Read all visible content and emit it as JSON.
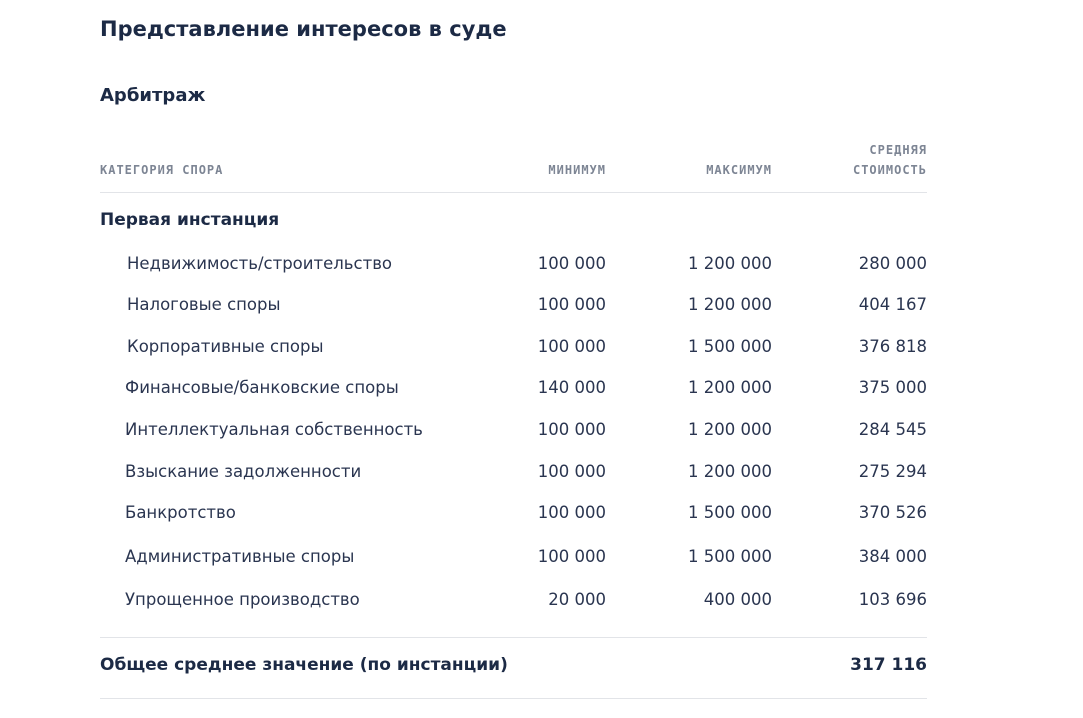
{
  "header": {
    "title": "Представление интересов в суде",
    "subtitle": "Арбитраж"
  },
  "table": {
    "columns": [
      "КАТЕГОРИЯ СПОРА",
      "МИНИМУМ",
      "МАКСИМУМ",
      "СРЕДНЯЯ СТОИМОСТЬ"
    ],
    "section": "Первая инстанция",
    "rows": [
      [
        "Недвижимость/строительство",
        "100 000",
        "1 200 000",
        "280 000"
      ],
      [
        "Налоговые споры",
        "100 000",
        "1 200 000",
        "404 167"
      ],
      [
        "Корпоративные споры",
        "100 000",
        "1 500 000",
        "376 818"
      ],
      [
        "Финансовые/банковские споры",
        "140 000",
        "1 200 000",
        "375 000"
      ],
      [
        "Интеллектуальная собственность",
        "100 000",
        "1 200 000",
        "284 545"
      ],
      [
        "Взыскание задолженности",
        "100 000",
        "1 200 000",
        "275 294"
      ],
      [
        "Банкротство",
        "100 000",
        "1 500 000",
        "370 526"
      ],
      [
        "Административные споры",
        "100 000",
        "1 500 000",
        "384 000"
      ],
      [
        "Упрощенное производство",
        "20 000",
        "400 000",
        "103 696"
      ]
    ],
    "total": {
      "label": "Общее среднее значение (по инстанции)",
      "value": "317 116"
    }
  }
}
